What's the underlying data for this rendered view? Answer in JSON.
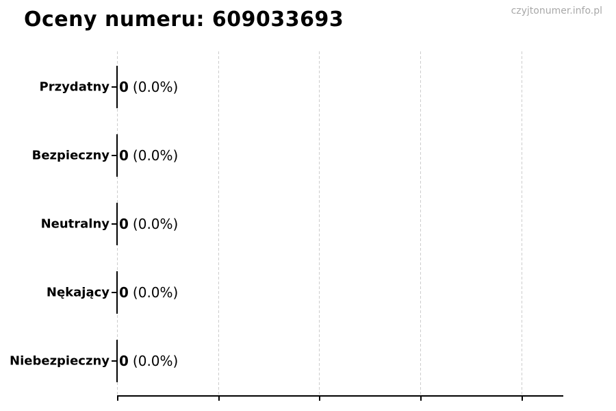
{
  "watermark": "czyjtonumer.info.pl",
  "chart_data": {
    "type": "bar",
    "orientation": "horizontal",
    "title": "Oceny numeru: 609033693",
    "categories": [
      "Przydatny",
      "Bezpieczny",
      "Neutralny",
      "Nękający",
      "Niebezpieczny"
    ],
    "values": [
      0,
      0,
      0,
      0,
      0
    ],
    "percentages": [
      0.0,
      0.0,
      0.0,
      0.0,
      0.0
    ],
    "rows": [
      {
        "label": "Przydatny",
        "count": "0",
        "percent": "(0.0%)"
      },
      {
        "label": "Bezpieczny",
        "count": "0",
        "percent": "(0.0%)"
      },
      {
        "label": "Neutralny",
        "count": "0",
        "percent": "(0.0%)"
      },
      {
        "label": "Nękający",
        "count": "0",
        "percent": "(0.0%)"
      },
      {
        "label": "Niebezpieczny",
        "count": "0",
        "percent": "(0.0%)"
      }
    ],
    "xlabel": "",
    "ylabel": "",
    "x_tick_labels": [],
    "x_gridline_count": 5,
    "grid": true,
    "grid_style": "dashed",
    "legend_position": "none",
    "bar_width_zero": true,
    "colors": {
      "text": "#000000",
      "watermark": "#a8a8a8",
      "gridline": "#cccccc",
      "axis": "#000000",
      "bar_edge": "#000000",
      "background": "#ffffff"
    }
  }
}
